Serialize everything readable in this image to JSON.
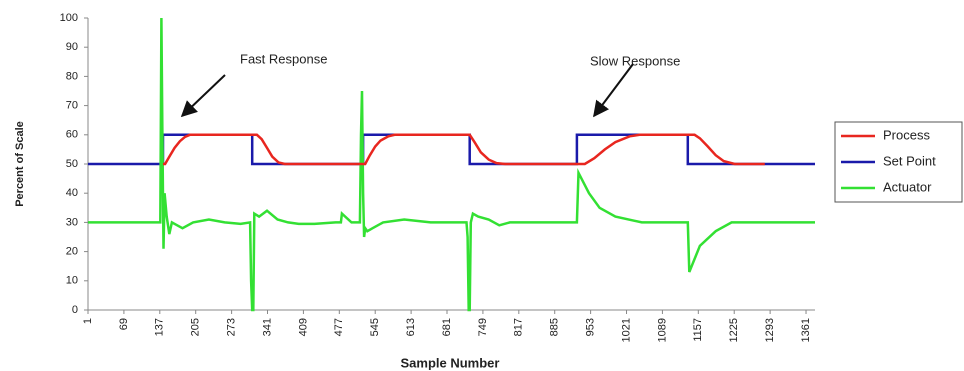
{
  "chart_data": {
    "type": "line",
    "y_label": "Percent of Scale",
    "x_label": "Sample Number",
    "annotations": [
      "Fast Response",
      "Slow Response"
    ],
    "xlim": [
      1,
      1378
    ],
    "ylim": [
      0,
      100
    ],
    "xticks": [
      1,
      69,
      137,
      205,
      273,
      341,
      409,
      477,
      545,
      613,
      681,
      749,
      817,
      885,
      953,
      1021,
      1089,
      1157,
      1225,
      1293,
      1361
    ],
    "yticks": [
      0,
      10,
      20,
      30,
      40,
      50,
      60,
      70,
      80,
      90,
      100
    ],
    "legend": "right",
    "grid": false,
    "series": [
      {
        "name": "Process",
        "color": "#e8261f",
        "x": [
          143,
          147,
          155,
          165,
          175,
          185,
          194,
          321,
          330,
          340,
          350,
          362,
          374,
          526,
          535,
          545,
          555,
          570,
          582,
          724,
          733,
          745,
          760,
          775,
          791,
          942,
          960,
          980,
          1000,
          1027,
          1046,
          1150,
          1160,
          1175,
          1190,
          1205,
          1226,
          1283
        ],
        "values": [
          50,
          50,
          52.5,
          55.5,
          57.8,
          59.3,
          60,
          60,
          58.5,
          55.5,
          52.5,
          50.5,
          50,
          50,
          53,
          56,
          58,
          59.5,
          60,
          60,
          57.5,
          54,
          51.5,
          50.3,
          50,
          50,
          52,
          55,
          57.5,
          59.5,
          60,
          60,
          58.8,
          56,
          53,
          51,
          50,
          50
        ]
      },
      {
        "name": "Set Point",
        "color": "#1a1aaa",
        "x": [
          1,
          143,
          143,
          312,
          312,
          522,
          522,
          724,
          724,
          927,
          927,
          1137,
          1137,
          1378
        ],
        "values": [
          50,
          50,
          60,
          60,
          50,
          50,
          60,
          60,
          50,
          50,
          60,
          60,
          50,
          50
        ]
      },
      {
        "name": "Actuator",
        "color": "#33e033",
        "x": [
          1,
          138,
          140,
          142,
          144,
          146,
          150,
          155,
          160,
          170,
          180,
          200,
          230,
          260,
          290,
          308,
          310,
          312,
          314,
          316,
          325,
          340,
          360,
          380,
          400,
          430,
          470,
          480,
          482,
          500,
          516,
          518,
          520,
          522,
          524,
          526,
          530,
          540,
          560,
          600,
          650,
          700,
          718,
          720,
          722,
          724,
          726,
          730,
          740,
          760,
          780,
          800,
          850,
          900,
          925,
          927,
          930,
          950,
          970,
          1000,
          1050,
          1100,
          1135,
          1137,
          1140,
          1160,
          1190,
          1220,
          1260,
          1300,
          1378
        ],
        "values": [
          30,
          30,
          100,
          60,
          21,
          40,
          32,
          26,
          30,
          29,
          28,
          30,
          31,
          30,
          29.5,
          30,
          10,
          0,
          0,
          33,
          32,
          34,
          31,
          30,
          29.5,
          29.5,
          30,
          30,
          33,
          30,
          30,
          60,
          75,
          40,
          25,
          28,
          27,
          28,
          30,
          31,
          30,
          30,
          30,
          25,
          0,
          0,
          30,
          33,
          32,
          31,
          29,
          30,
          30,
          30,
          30,
          30,
          47,
          40,
          35,
          32,
          30,
          30,
          30,
          30,
          13,
          22,
          27,
          30,
          30,
          30,
          30
        ]
      }
    ]
  }
}
